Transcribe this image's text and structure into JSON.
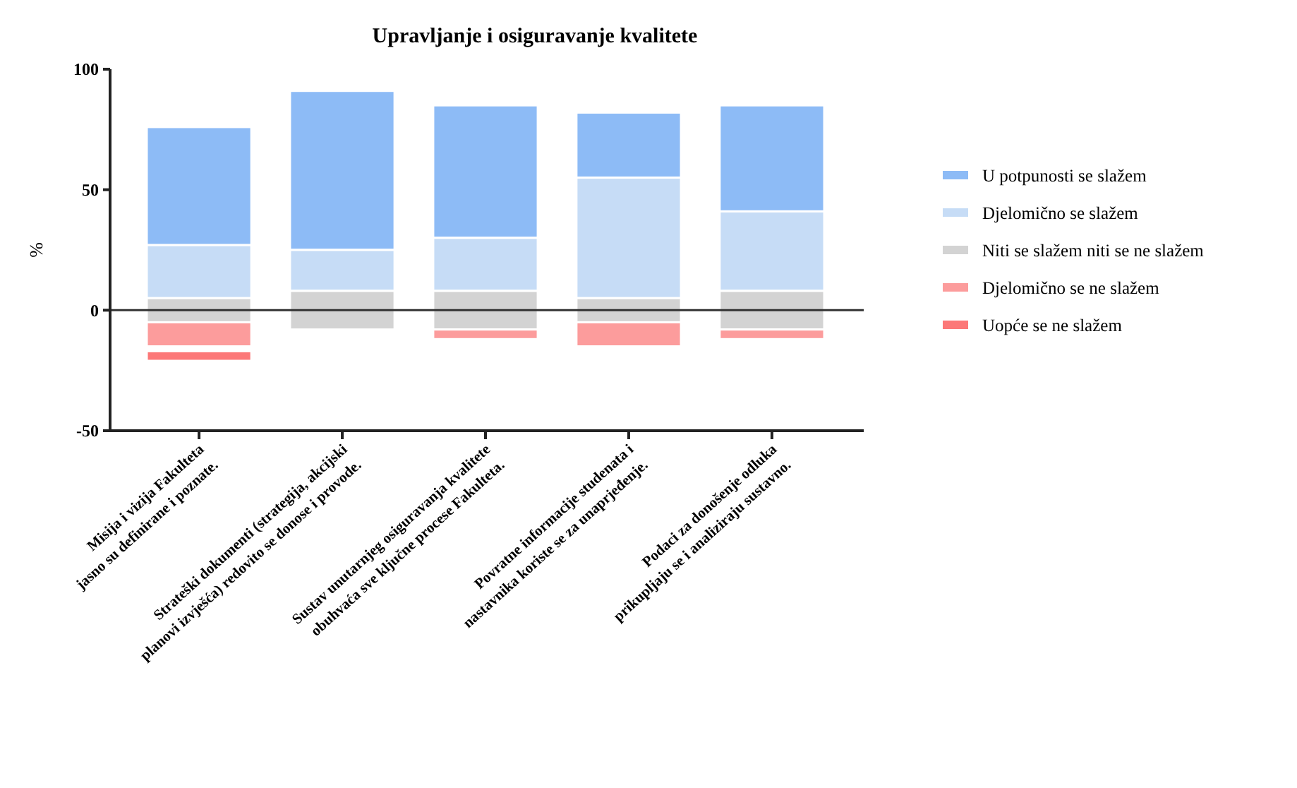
{
  "chart_data": {
    "type": "bar",
    "title": "Upravljanje i osiguravanje kvalitete",
    "ylabel": "%",
    "categories": [
      "Misija i vizija Fakulteta jasno su definirane i poznate.",
      "Strateški dokumenti (strategija, akcijski planovi izvješća) redovito se donose i provode.",
      "Sustav unutarnjeg osiguravanja kvalitete obuhvaća sve ključne procese Fakulteta.",
      "Povratne informacije studenata i nastavnika koriste se za unaprjeđenje.",
      "Podaci za donošenje odluka prikupljaju se i analiziraju sustavno."
    ],
    "series": [
      {
        "name": "U potpunosti se slažem",
        "color": "#8dbbf6",
        "base": [
          27,
          25,
          30,
          55,
          41
        ],
        "values": [
          49,
          66,
          55,
          27,
          44
        ]
      },
      {
        "name": "Djelomično se slažem",
        "color": "#c6dcf6",
        "base": [
          5,
          8,
          8,
          5,
          8
        ],
        "values": [
          22,
          17,
          22,
          50,
          33
        ]
      },
      {
        "name": "Niti se slažem niti se ne slažem",
        "color": "#d3d3d3",
        "base": [
          -5,
          -8,
          -8,
          -5,
          -8
        ],
        "values": [
          10,
          16,
          16,
          10,
          16
        ]
      },
      {
        "name": "Djelomično se ne slažem",
        "color": "#fc9c9c",
        "base": [
          -15,
          null,
          -12,
          -15,
          -12
        ],
        "values": [
          10,
          null,
          4,
          10,
          4
        ]
      },
      {
        "name": "Uopće se ne slažem",
        "color": "#fc7878",
        "base": [
          -21,
          null,
          null,
          null,
          null
        ],
        "values": [
          4,
          null,
          null,
          null,
          null
        ]
      }
    ],
    "ylim": [
      -50,
      100
    ],
    "yticks": [
      -50,
      0,
      50,
      100
    ],
    "ref_lines": [
      {
        "axis": "y",
        "value": 0,
        "color": "#333333"
      }
    ],
    "grid": false,
    "legend": "right"
  }
}
